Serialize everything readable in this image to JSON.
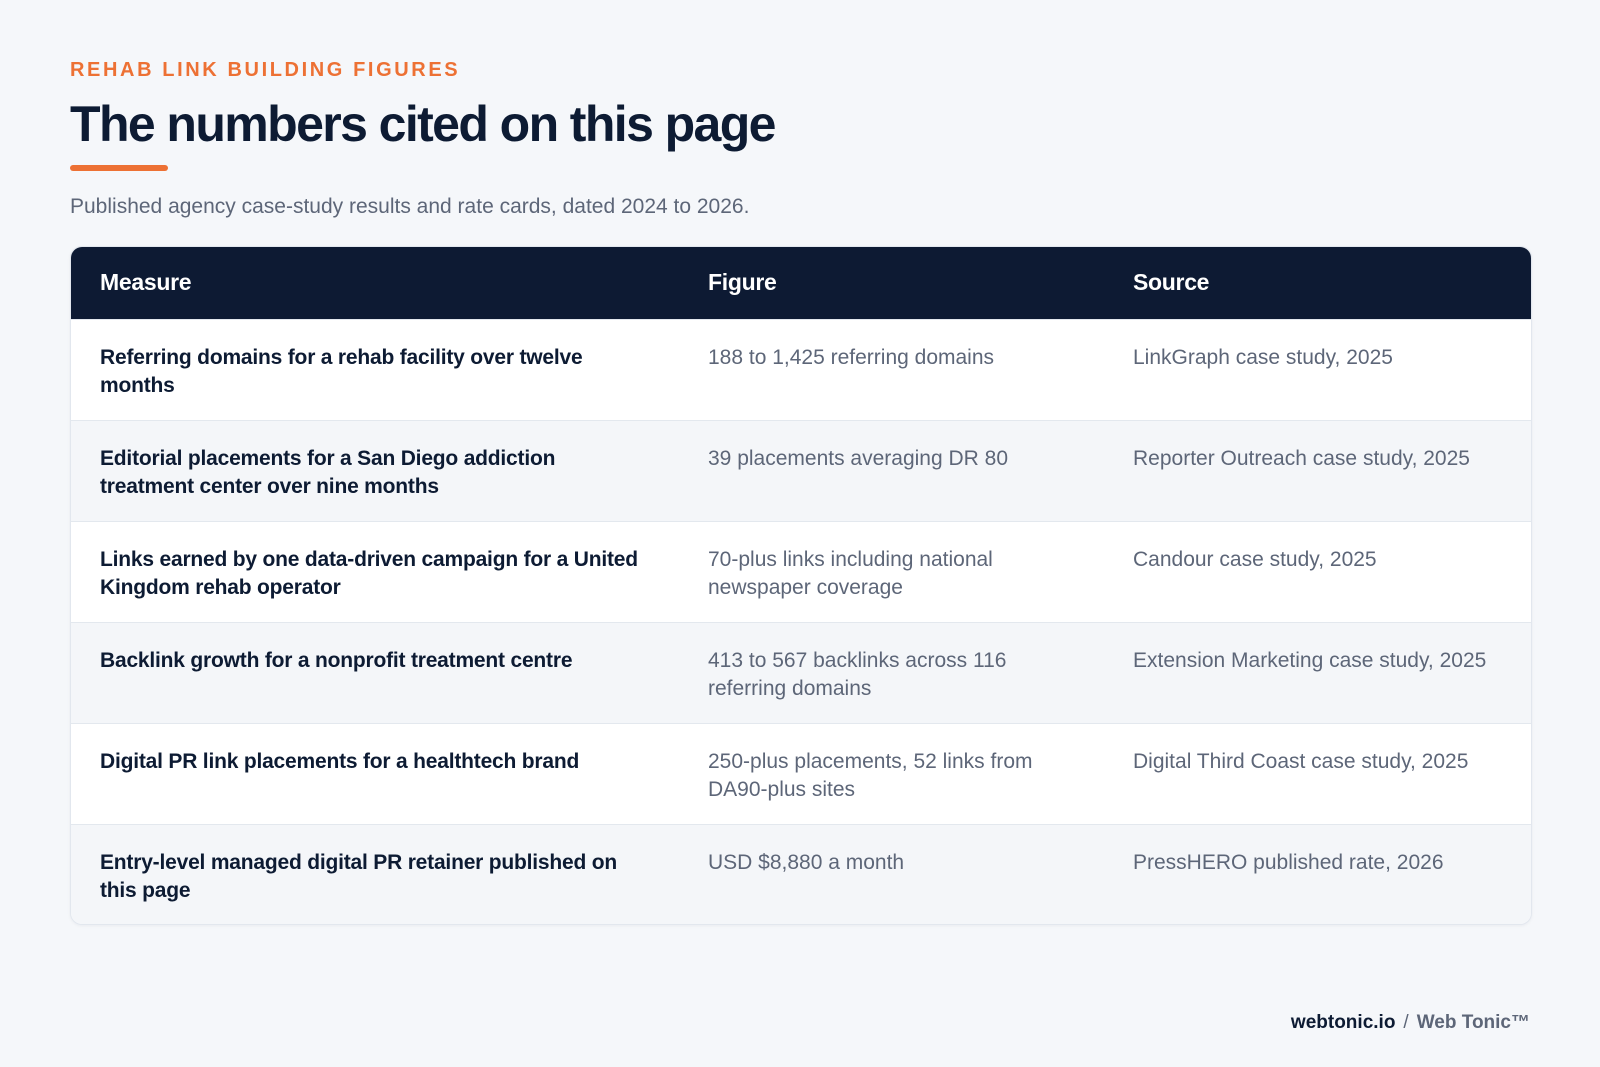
{
  "header": {
    "eyebrow": "REHAB LINK BUILDING FIGURES",
    "title": "The numbers cited on this page",
    "subtitle": "Published agency case-study results and rate cards, dated 2024 to 2026."
  },
  "table": {
    "columns": [
      "Measure",
      "Figure",
      "Source"
    ],
    "rows": [
      {
        "measure": "Referring domains for a rehab facility over twelve months",
        "figure": "188 to 1,425 referring domains",
        "source": "LinkGraph case study, 2025"
      },
      {
        "measure": "Editorial placements for a San Diego addiction treatment center over nine months",
        "figure": "39 placements averaging DR 80",
        "source": "Reporter Outreach case study, 2025"
      },
      {
        "measure": "Links earned by one data-driven campaign for a United Kingdom rehab operator",
        "figure": "70-plus links including national newspaper coverage",
        "source": "Candour case study, 2025"
      },
      {
        "measure": "Backlink growth for a nonprofit treatment centre",
        "figure": "413 to 567 backlinks across 116 referring domains",
        "source": "Extension Marketing case study, 2025"
      },
      {
        "measure": "Digital PR link placements for a healthtech brand",
        "figure": "250-plus placements, 52 links from DA90-plus sites",
        "source": "Digital Third Coast case study, 2025"
      },
      {
        "measure": "Entry-level managed digital PR retainer published on this page",
        "figure": "USD $8,880 a month",
        "source": "PressHERO published rate, 2026"
      }
    ]
  },
  "footer": {
    "domain": "webtonic.io",
    "separator": "/",
    "brand": "Web Tonic™"
  },
  "colors": {
    "accent": "#ed7134",
    "header_bg": "#0d1a33",
    "page_bg": "#f5f7fa"
  }
}
